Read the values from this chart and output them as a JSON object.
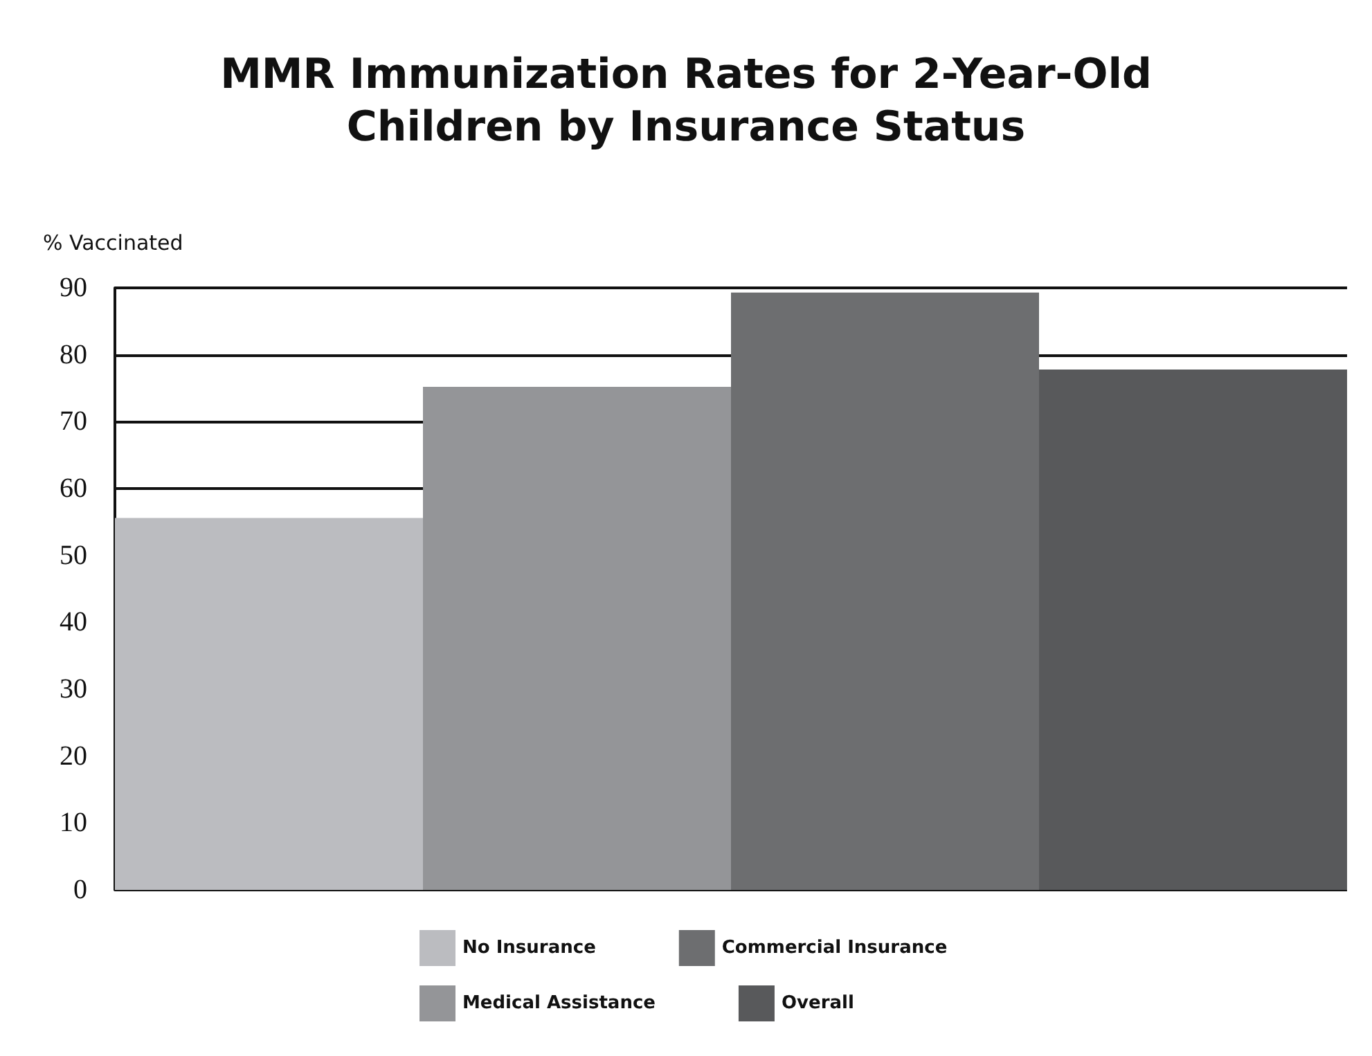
{
  "chart_data": {
    "type": "bar",
    "title": "MMR Immunization Rates for 2-Year-Old\nChildren by Insurance Status",
    "ylabel": "% Vaccinated",
    "categories": [
      null
    ],
    "series": [
      {
        "name": "No Insurance",
        "color": "#bbbcc0",
        "values": [
          55.6
        ]
      },
      {
        "name": "Medical Assistance",
        "color": "#949598",
        "values": [
          75.2
        ]
      },
      {
        "name": "Commercial Insurance",
        "color": "#6d6e70",
        "values": [
          89.3
        ]
      },
      {
        "name": "Overall",
        "color": "#58595b",
        "values": [
          77.8
        ]
      }
    ],
    "ylim": [
      0,
      90
    ],
    "yticks": [
      0,
      10,
      20,
      30,
      40,
      50,
      60,
      70,
      80,
      90
    ],
    "grid": "y",
    "legend": "bottom"
  }
}
